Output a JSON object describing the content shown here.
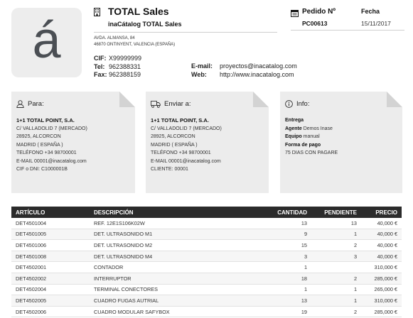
{
  "logo": {
    "glyph": "á"
  },
  "company": {
    "name": "TOTAL Sales",
    "sub": "inaCátalog TOTAL Sales",
    "address_line1": "AVDA. ALMANSA, 84",
    "address_line2": "46870 ONTINYENT, VALENCIA (ESPAÑA)",
    "cif_label": "CIF:",
    "cif": "X99999999",
    "tel_label": "Tel:",
    "tel": "962388331",
    "fax_label": "Fax:",
    "fax": "962388159",
    "email_label": "E-mail:",
    "email": "proyectos@inacatalog.com",
    "web_label": "Web:",
    "web": "http://www.inacatalog.com"
  },
  "order": {
    "label": "Pedido Nº",
    "number": "PC00613",
    "date_label": "Fecha",
    "date": "15/11/2017"
  },
  "cards": {
    "para": {
      "title": "Para:",
      "lines": [
        "1+1 TOTAL POINT, S.A.",
        "C/ VALLADOLID 7 (MERCADO)",
        "28925, ALCORCON",
        "MADRID ( ESPAÑA )",
        "TELÉFONO +34 98700001",
        "E-MAIL 00001@inacatalog.com",
        "CIF o DNI: C1000001B"
      ]
    },
    "enviar": {
      "title": "Enviar a:",
      "lines": [
        "1+1 TOTAL POINT, S.A.",
        "C/ VALLADOLID 7 (MERCADO)",
        "28925, ALCORCON",
        "MADRID ( ESPAÑA )",
        "TELÉFONO +34 98700001",
        "E-MAIL 00001@inacatalog.com",
        "CLIENTE: 00001"
      ]
    },
    "info": {
      "title": "Info:",
      "entrega_label": "Entrega",
      "agente_label": "Agente",
      "agente": "Demos Inase",
      "equipo_label": "Equipo",
      "equipo": "manual",
      "forma_label": "Forma de pago",
      "forma": "75 DIAS CON PAGARE"
    }
  },
  "table": {
    "headers": [
      "ARTÍCULO",
      "DESCRIPCIÓN",
      "CANTIDAD",
      "PENDIENTE",
      "PRECIO"
    ],
    "rows": [
      [
        "DET4501004",
        "REF. 12E1S106K02W",
        "13",
        "13",
        "40,000 €"
      ],
      [
        "DET4501005",
        "DET. ULTRASONIDO M1",
        "9",
        "1",
        "40,000 €"
      ],
      [
        "DET4501006",
        "DET. ULTRASONIDO M2",
        "15",
        "2",
        "40,000 €"
      ],
      [
        "DET4501008",
        "DET. ULTRASONIDO M4",
        "3",
        "3",
        "40,000 €"
      ],
      [
        "DET4502001",
        "CONTADOR",
        "1",
        "",
        "310,000 €"
      ],
      [
        "DET4502002",
        "INTERRUPTOR",
        "18",
        "2",
        "285,000 €"
      ],
      [
        "DET4502004",
        "TERMINAL CONECTORES",
        "1",
        "1",
        "265,000 €"
      ],
      [
        "DET4502005",
        "CUADRO FUGAS AUTRIAL",
        "13",
        "1",
        "310,000 €"
      ],
      [
        "DET4502006",
        "CUADRO MODULAR SAFYBOX",
        "19",
        "2",
        "285,000 €"
      ]
    ]
  }
}
